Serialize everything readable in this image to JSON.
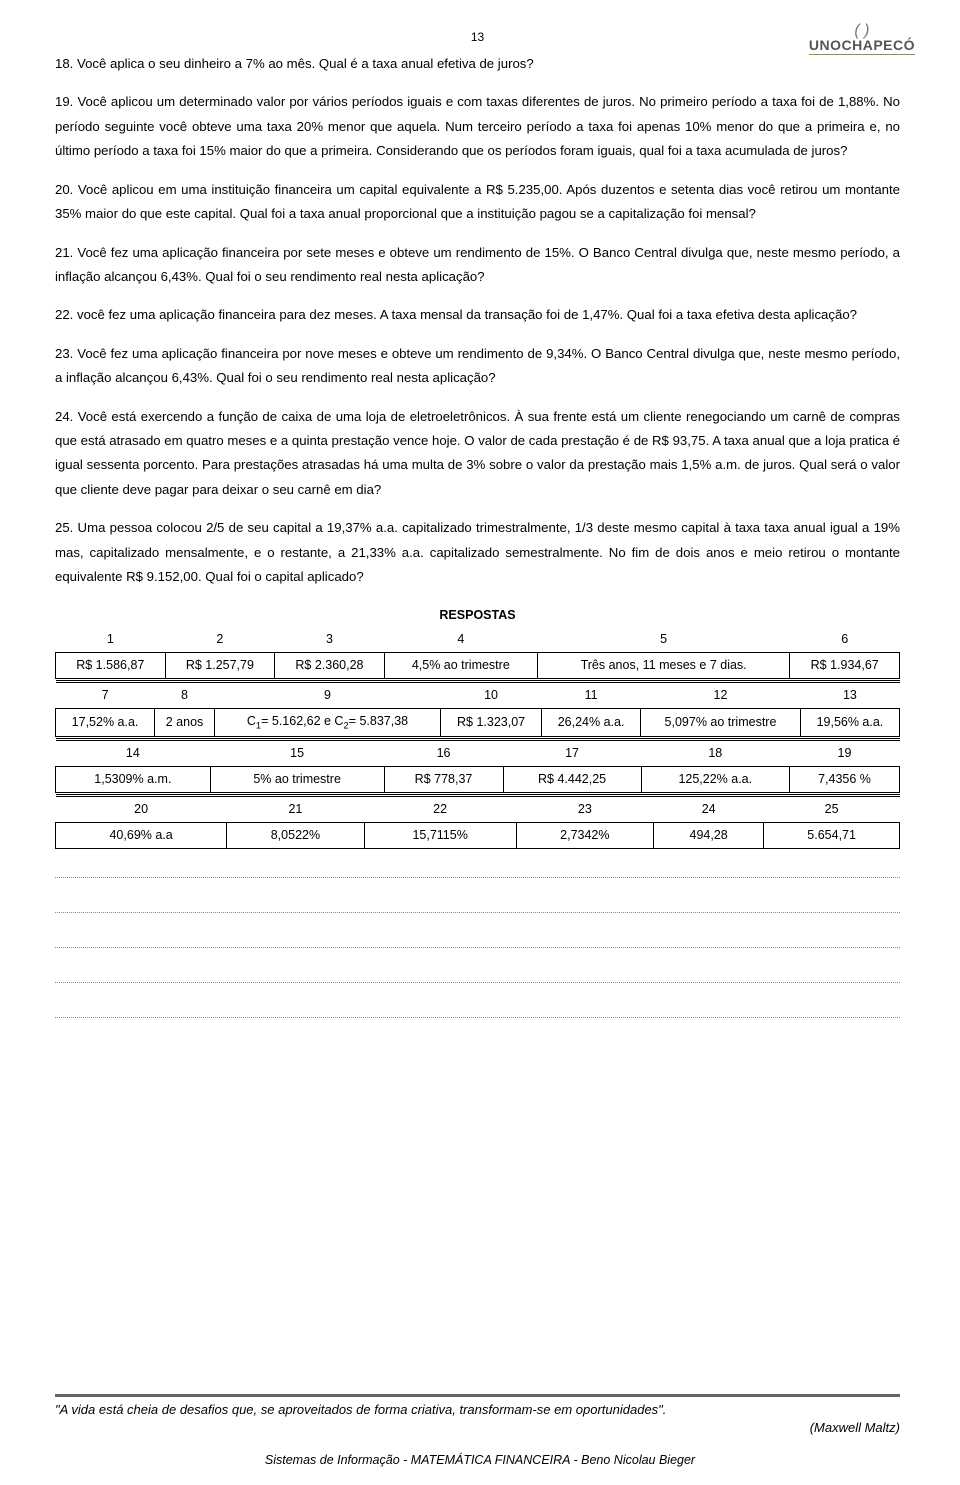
{
  "page_number": "13",
  "logo": {
    "brand": "UNOCHAPECÓ"
  },
  "paragraphs": {
    "q18": "18. Você aplica o seu dinheiro a  7% ao mês. Qual é a taxa anual efetiva de juros?",
    "q19": "19. Você aplicou um determinado valor por vários períodos iguais e com taxas diferentes de juros. No primeiro período a taxa foi de 1,88%. No período seguinte você obteve uma taxa 20% menor que aquela. Num terceiro período a taxa foi apenas 10% menor do que a primeira e, no último período a taxa foi 15% maior do que a primeira. Considerando que os períodos foram iguais, qual foi a taxa acumulada de juros?",
    "q20": "20. Você aplicou em uma instituição financeira um capital equivalente a R$ 5.235,00. Após duzentos e setenta dias você retirou um montante 35% maior do que este capital. Qual foi a taxa anual proporcional que a instituição pagou se a capitalização foi mensal?",
    "q21": "21. Você fez uma aplicação financeira por sete meses e obteve um rendimento de 15%. O Banco Central divulga que, neste mesmo período, a inflação alcançou 6,43%. Qual foi o seu rendimento real nesta aplicação?",
    "q22": "22. você fez uma aplicação financeira para dez meses. A taxa mensal da transação foi de 1,47%. Qual foi a taxa efetiva desta aplicação?",
    "q23": "23. Você fez uma aplicação financeira por nove meses e obteve um rendimento de 9,34%. O Banco Central divulga que, neste mesmo período, a inflação alcançou 6,43%. Qual foi o seu rendimento real nesta aplicação?",
    "q24": "24. Você está exercendo a função de caixa de uma loja de eletroeletrônicos. À sua frente está um cliente renegociando um carnê de compras que está atrasado em quatro meses e a quinta prestação vence hoje. O valor de cada prestação é de R$ 93,75. A taxa anual que a loja pratica é igual sessenta porcento. Para prestações atrasadas há uma multa de 3% sobre o valor da prestação mais 1,5% a.m. de juros. Qual será o valor que cliente deve pagar para deixar o seu carnê em dia?",
    "q25": "25. Uma pessoa colocou 2/5 de seu capital a 19,37% a.a. capitalizado trimestralmente, 1/3  deste mesmo capital à taxa taxa anual igual a 19% mas, capitalizado mensalmente,  e o restante, a 21,33% a.a. capitalizado semestralmente. No fim de dois anos e meio retirou o montante  equivalente R$ 9.152,00. Qual foi o capital aplicado?"
  },
  "answers_title": "RESPOSTAS",
  "answers": {
    "block1": {
      "headers": [
        "1",
        "2",
        "3",
        "4",
        "5",
        "6"
      ],
      "row": [
        "R$ 1.586,87",
        "R$ 1.257,79",
        "R$ 2.360,28",
        "4,5% ao trimestre",
        "Três anos, 11 meses e 7 dias.",
        "R$ 1.934,67"
      ]
    },
    "block2": {
      "headers": [
        "7",
        "8",
        "9",
        "10",
        "11",
        "12",
        "13"
      ],
      "row_c1": "17,52% a.a.",
      "row_c2": "2 anos",
      "row_c3_pre": "C",
      "row_c3_sub1": "1",
      "row_c3_mid": "= 5.162,62  e C",
      "row_c3_sub2": "2",
      "row_c3_post": "= 5.837,38",
      "row_c4": "R$ 1.323,07",
      "row_c5": "26,24% a.a.",
      "row_c6": "5,097% ao trimestre",
      "row_c7": "19,56% a.a."
    },
    "block3": {
      "headers": [
        "14",
        "15",
        "16",
        "17",
        "18",
        "19"
      ],
      "row": [
        "1,5309% a.m.",
        "5% ao trimestre",
        "R$ 778,37",
        "R$ 4.442,25",
        "125,22% a.a.",
        "7,4356 %"
      ]
    },
    "block4": {
      "headers": [
        "20",
        "21",
        "22",
        "23",
        "24",
        "25"
      ],
      "row": [
        "40,69% a.a",
        "8,0522%",
        "15,7115%",
        "2,7342%",
        "494,28",
        "5.654,71"
      ]
    }
  },
  "quote": {
    "text": "\"A vida está cheia de desafios que, se aproveitados de forma criativa, transformam-se em oportunidades\".",
    "author": "(Maxwell Maltz)"
  },
  "footer": "Sistemas de Informação - MATEMÁTICA FINANCEIRA  -  Beno Nicolau Bieger"
}
